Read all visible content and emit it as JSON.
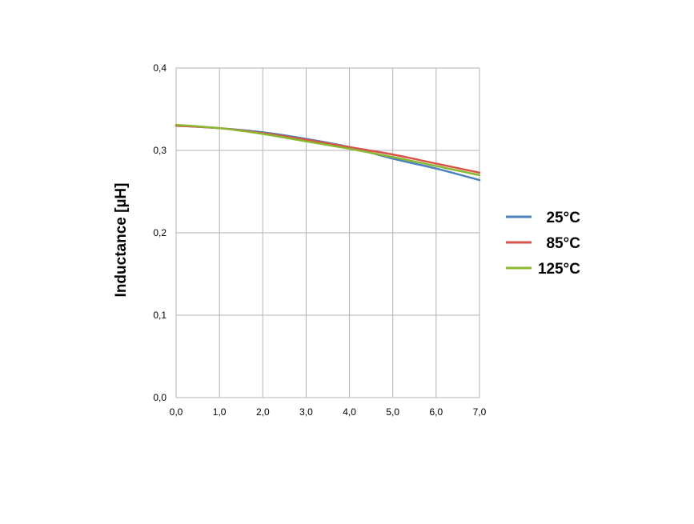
{
  "chart_data": {
    "type": "line",
    "title": "",
    "xlabel": "",
    "ylabel": "Inductance [µH]",
    "xlim": [
      0,
      7
    ],
    "ylim": [
      0,
      0.4
    ],
    "x_ticks": [
      "0,0",
      "1,0",
      "2,0",
      "3,0",
      "4,0",
      "5,0",
      "6,0",
      "7,0"
    ],
    "y_ticks": [
      "0,0",
      "0,1",
      "0,2",
      "0,3",
      "0,4"
    ],
    "grid": true,
    "legend_position": "right",
    "x": [
      0,
      1,
      2,
      3,
      4,
      5,
      6,
      7
    ],
    "series": [
      {
        "name": "25°C",
        "color": "#4a82bf",
        "values": [
          0.33,
          0.327,
          0.322,
          0.314,
          0.304,
          0.29,
          0.278,
          0.264
        ]
      },
      {
        "name": "85°C",
        "color": "#d9534a",
        "values": [
          0.33,
          0.327,
          0.321,
          0.313,
          0.304,
          0.295,
          0.284,
          0.273
        ]
      },
      {
        "name": "125°C",
        "color": "#8ab82f",
        "values": [
          0.331,
          0.327,
          0.32,
          0.311,
          0.302,
          0.292,
          0.281,
          0.27
        ]
      }
    ]
  }
}
